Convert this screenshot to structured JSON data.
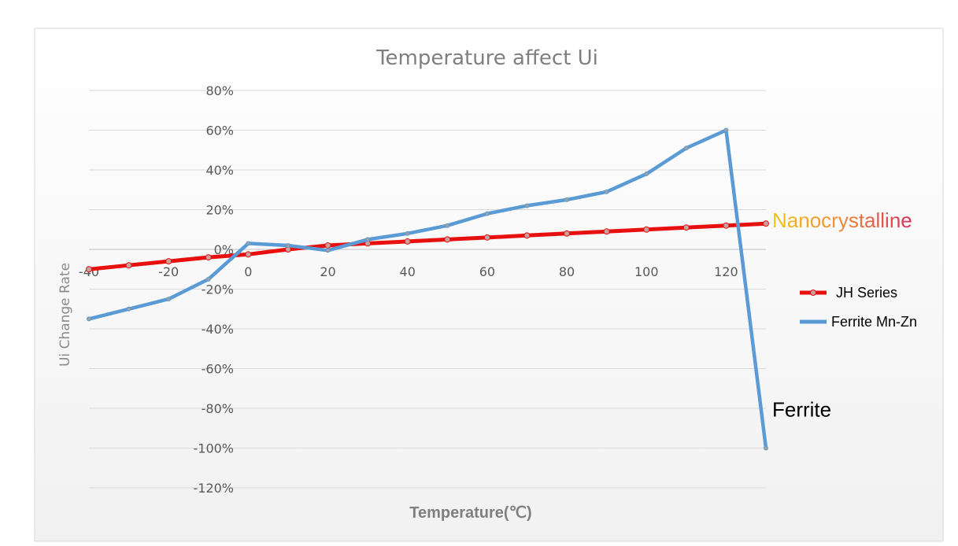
{
  "chart_data": {
    "type": "line",
    "title": "Temperature affect Ui",
    "xlabel": "Temperature(℃)",
    "ylabel": "Ui  Change Rate",
    "x_ticks": [
      -40,
      -20,
      0,
      20,
      40,
      60,
      80,
      100,
      120
    ],
    "x_tick_labels": [
      "-40",
      "-20",
      "0",
      "20",
      "40",
      "60",
      "80",
      "100",
      "120"
    ],
    "xlim": [
      -40,
      130
    ],
    "y_ticks": [
      80,
      60,
      40,
      20,
      0,
      -20,
      -40,
      -60,
      -80,
      -100,
      -120
    ],
    "y_tick_labels": [
      "80%",
      "60%",
      "40%",
      "20%",
      "0%",
      "-20%",
      "-40%",
      "-60%",
      "-80%",
      "-100%",
      "-120%"
    ],
    "ylim": [
      -120,
      80
    ],
    "grid": true,
    "legend_position": "right",
    "series": [
      {
        "name": "JH Series",
        "color": "#e8100f",
        "x": [
          -40,
          -30,
          -20,
          -10,
          0,
          10,
          20,
          30,
          40,
          50,
          60,
          70,
          80,
          90,
          100,
          110,
          120,
          130
        ],
        "values": [
          -10,
          -8,
          -6,
          -4,
          -2.5,
          0,
          2,
          3,
          4,
          5,
          6,
          7,
          8,
          9,
          10,
          11,
          12,
          13
        ]
      },
      {
        "name": "Ferrite Mn-Zn",
        "color": "#5b9bd5",
        "x": [
          -40,
          -30,
          -20,
          -10,
          0,
          10,
          20,
          30,
          40,
          50,
          60,
          70,
          80,
          90,
          100,
          110,
          120,
          130
        ],
        "values": [
          -35,
          -30,
          -25,
          -15,
          3,
          2,
          -0.5,
          5,
          8,
          12,
          18,
          22,
          25,
          29,
          38,
          51,
          60,
          -100
        ]
      }
    ],
    "annotations": [
      {
        "text": "Nanocrystalline",
        "x": 130,
        "y": 13
      },
      {
        "text": "Ferrite",
        "x": 130,
        "y": -85
      }
    ]
  }
}
